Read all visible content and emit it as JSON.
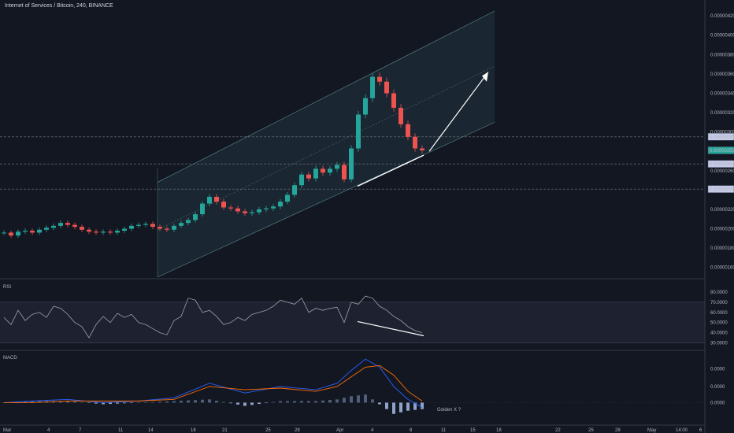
{
  "header": {
    "symbol": "Internet of Services / Bitcoin, 240, BINANCE"
  },
  "chart_data": [
    {
      "type": "candlestick",
      "title": "Internet of Services / Bitcoin, 240, BINANCE",
      "ylim": [
        1.5e-06,
        4.25e-06
      ],
      "y_ticks": [
        "0.00000420",
        "0.00000400",
        "0.00000380",
        "0.00000360",
        "0.00000340",
        "0.00000320",
        "0.00000300",
        "0.00000260",
        "0.00000240",
        "0.00000220",
        "0.00000200",
        "0.00000180",
        "0.00000160"
      ],
      "price_tags": [
        {
          "label": "0.00000295",
          "value": 2.95e-06,
          "style": "light"
        },
        {
          "label": "0.00000281",
          "value": 2.81e-06,
          "style": "accent"
        },
        {
          "label": "0.00000267",
          "value": 2.67e-06,
          "style": "light"
        },
        {
          "label": "0.00000241",
          "value": 2.41e-06,
          "style": "light"
        }
      ],
      "horizontal_levels": [
        2.95e-06,
        2.67e-06,
        2.41e-06
      ],
      "x_labels": [
        "Mar",
        "4",
        "7",
        "11",
        "14",
        "18",
        "21",
        "25",
        "28",
        "Apr",
        "4",
        "8",
        "11",
        "15",
        "18",
        "22",
        "25",
        "28",
        "May",
        "14:00",
        "6"
      ],
      "series": [
        {
          "points": [
            [
              1,
              1.96e-06
            ],
            [
              2,
              1.93e-06
            ],
            [
              3,
              1.97e-06
            ],
            [
              4,
              1.98e-06
            ],
            [
              5,
              1.96e-06
            ],
            [
              6,
              1.99e-06
            ],
            [
              7,
              2.01e-06
            ],
            [
              8,
              2.03e-06
            ],
            [
              9,
              2.06e-06
            ],
            [
              10,
              2.04e-06
            ],
            [
              11,
              2.02e-06
            ],
            [
              12,
              1.99e-06
            ],
            [
              13,
              1.97e-06
            ],
            [
              14,
              1.96e-06
            ],
            [
              15,
              1.97e-06
            ],
            [
              16,
              1.96e-06
            ],
            [
              17,
              1.98e-06
            ],
            [
              18,
              2e-06
            ],
            [
              19,
              2.03e-06
            ],
            [
              20,
              2.04e-06
            ],
            [
              21,
              2.05e-06
            ],
            [
              22,
              2.02e-06
            ],
            [
              23,
              2e-06
            ],
            [
              24,
              1.99e-06
            ],
            [
              25,
              2.03e-06
            ],
            [
              26,
              2.06e-06
            ],
            [
              27,
              2.09e-06
            ],
            [
              28,
              2.15e-06
            ],
            [
              29,
              2.26e-06
            ],
            [
              30,
              2.33e-06
            ],
            [
              31,
              2.28e-06
            ],
            [
              32,
              2.22e-06
            ],
            [
              33,
              2.21e-06
            ],
            [
              34,
              2.18e-06
            ],
            [
              35,
              2.16e-06
            ],
            [
              36,
              2.17e-06
            ],
            [
              37,
              2.2e-06
            ],
            [
              38,
              2.21e-06
            ],
            [
              39,
              2.23e-06
            ],
            [
              40,
              2.28e-06
            ],
            [
              41,
              2.35e-06
            ],
            [
              42,
              2.45e-06
            ],
            [
              43,
              2.56e-06
            ],
            [
              44,
              2.52e-06
            ],
            [
              45,
              2.62e-06
            ],
            [
              46,
              2.58e-06
            ],
            [
              47,
              2.62e-06
            ],
            [
              48,
              2.66e-06
            ],
            [
              49,
              2.51e-06
            ],
            [
              50,
              2.83e-06
            ],
            [
              51,
              3.18e-06
            ],
            [
              52,
              3.35e-06
            ],
            [
              53,
              3.57e-06
            ],
            [
              54,
              3.52e-06
            ],
            [
              55,
              3.4e-06
            ],
            [
              56,
              3.25e-06
            ],
            [
              57,
              3.08e-06
            ],
            [
              58,
              2.95e-06
            ],
            [
              59,
              2.83e-06
            ],
            [
              60,
              2.81e-06
            ]
          ]
        }
      ]
    },
    {
      "type": "line",
      "title": "RSI",
      "ylim": [
        25,
        90
      ],
      "y_ticks": [
        "80.0000",
        "70.0000",
        "60.0000",
        "50.0000",
        "40.0000",
        "30.0000"
      ],
      "band": [
        30,
        70
      ],
      "series": [
        {
          "points": [
            [
              1,
              55
            ],
            [
              2,
              48
            ],
            [
              3,
              62
            ],
            [
              4,
              52
            ],
            [
              5,
              58
            ],
            [
              6,
              60
            ],
            [
              7,
              55
            ],
            [
              8,
              66
            ],
            [
              9,
              64
            ],
            [
              10,
              58
            ],
            [
              11,
              50
            ],
            [
              12,
              46
            ],
            [
              13,
              35
            ],
            [
              14,
              48
            ],
            [
              15,
              56
            ],
            [
              16,
              50
            ],
            [
              17,
              59
            ],
            [
              18,
              55
            ],
            [
              19,
              58
            ],
            [
              20,
              50
            ],
            [
              21,
              48
            ],
            [
              22,
              44
            ],
            [
              23,
              40
            ],
            [
              24,
              38
            ],
            [
              25,
              52
            ],
            [
              26,
              56
            ],
            [
              27,
              74
            ],
            [
              28,
              72
            ],
            [
              29,
              60
            ],
            [
              30,
              62
            ],
            [
              31,
              56
            ],
            [
              32,
              48
            ],
            [
              33,
              50
            ],
            [
              34,
              55
            ],
            [
              35,
              52
            ],
            [
              36,
              58
            ],
            [
              37,
              60
            ],
            [
              38,
              62
            ],
            [
              39,
              66
            ],
            [
              40,
              72
            ],
            [
              41,
              70
            ],
            [
              42,
              68
            ],
            [
              43,
              74
            ],
            [
              44,
              60
            ],
            [
              45,
              64
            ],
            [
              46,
              62
            ],
            [
              47,
              64
            ],
            [
              48,
              65
            ],
            [
              49,
              50
            ],
            [
              50,
              70
            ],
            [
              51,
              68
            ],
            [
              52,
              76
            ],
            [
              53,
              74
            ],
            [
              54,
              66
            ],
            [
              55,
              62
            ],
            [
              56,
              56
            ],
            [
              57,
              52
            ],
            [
              58,
              46
            ],
            [
              59,
              42
            ],
            [
              60,
              40
            ]
          ]
        }
      ]
    },
    {
      "type": "line",
      "title": "MACD",
      "ylim": [
        -1.2e-07,
        3e-07
      ],
      "y_ticks": [
        "0.0000",
        "0.0000",
        "0.0000"
      ],
      "annotation": "Golden X ?",
      "series": [
        {
          "points": [
            [
              1,
              0.0
            ],
            [
              5,
              1e-08
            ],
            [
              10,
              2e-08
            ],
            [
              15,
              0.0
            ],
            [
              20,
              1e-08
            ],
            [
              25,
              3e-08
            ],
            [
              30,
              1.2e-07
            ],
            [
              35,
              6e-08
            ],
            [
              40,
              1e-07
            ],
            [
              45,
              8e-08
            ],
            [
              48,
              1.2e-07
            ],
            [
              50,
              2e-07
            ],
            [
              52,
              2.7e-07
            ],
            [
              54,
              2.2e-07
            ],
            [
              56,
              1e-07
            ],
            [
              58,
              2e-08
            ],
            [
              60,
              -3e-08
            ]
          ]
        },
        {
          "points": [
            [
              1,
              0.0
            ],
            [
              5,
              0.0
            ],
            [
              10,
              1e-08
            ],
            [
              15,
              1e-08
            ],
            [
              20,
              1e-08
            ],
            [
              25,
              2e-08
            ],
            [
              30,
              1e-07
            ],
            [
              35,
              8e-08
            ],
            [
              40,
              9e-08
            ],
            [
              45,
              7e-08
            ],
            [
              48,
              1e-07
            ],
            [
              50,
              1.6e-07
            ],
            [
              52,
              2.2e-07
            ],
            [
              54,
              2.3e-07
            ],
            [
              56,
              1.7e-07
            ],
            [
              58,
              7e-08
            ],
            [
              60,
              1e-08
            ]
          ]
        }
      ]
    }
  ],
  "colors": {
    "up": "#26a69a",
    "down": "#ef5350",
    "grid": "#2a2e39",
    "channel": "#5a8a8c",
    "rsi": "#9aa1ac",
    "macd": "#2962ff",
    "signal": "#ff6d00",
    "hist": "#5d6a89",
    "accent": "#26a69a",
    "annot": "#c9a227"
  }
}
